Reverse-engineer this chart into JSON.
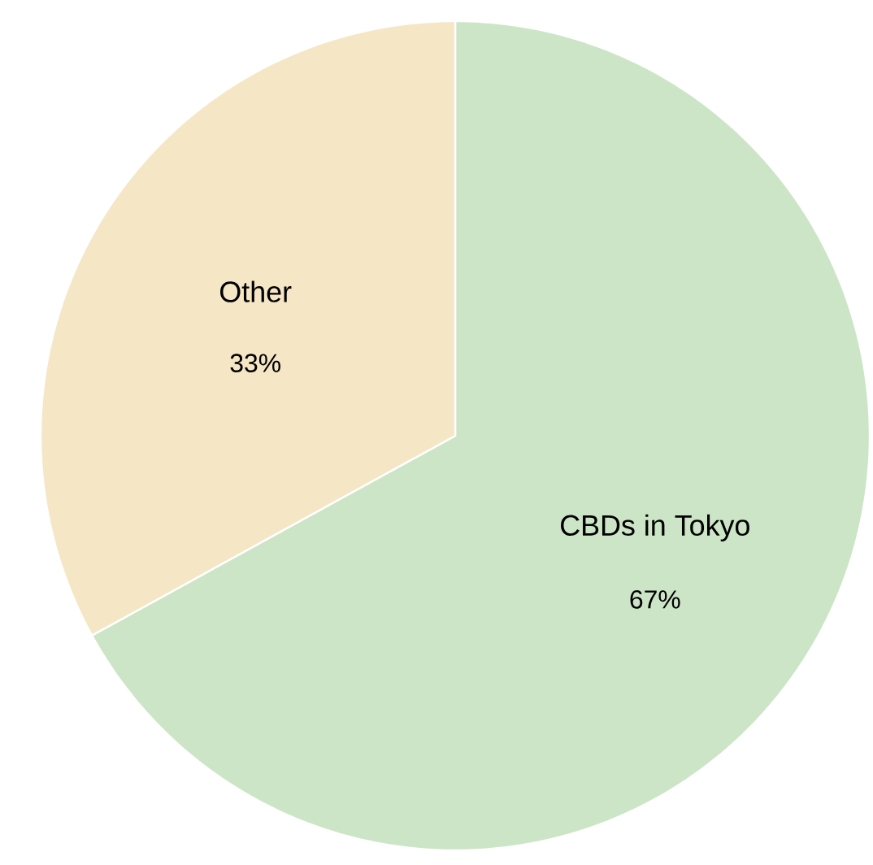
{
  "chart_data": {
    "type": "pie",
    "categories": [
      "CBDs in Tokyo",
      "Other"
    ],
    "values": [
      67,
      33
    ],
    "value_labels": [
      "67%",
      "33%"
    ],
    "colors": [
      "#cde5c7",
      "#f5e6c5"
    ]
  }
}
